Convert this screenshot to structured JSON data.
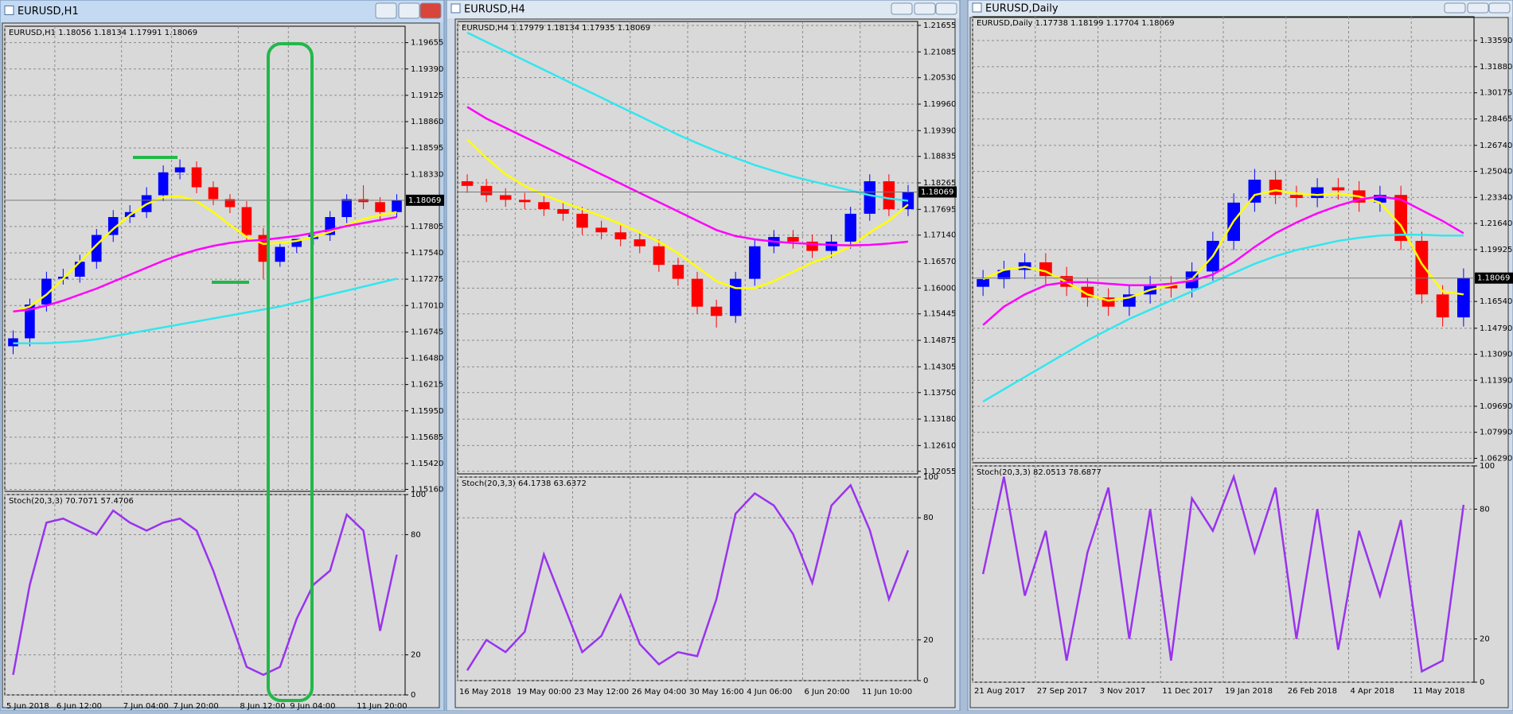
{
  "windows": [
    {
      "title": "EURUSD,H1"
    },
    {
      "title": "EURUSD,H4"
    },
    {
      "title": "EURUSD,Daily"
    }
  ],
  "chart_data": [
    {
      "type": "candlestick",
      "title": "EURUSD,H1  1.18056 1.18134 1.17991 1.18069",
      "categories": [
        "5 Jun 2018",
        null,
        null,
        "6 Jun 12:00",
        null,
        null,
        null,
        "7 Jun 04:00",
        null,
        null,
        "7 Jun 20:00",
        null,
        null,
        null,
        "8 Jun 12:00",
        null,
        null,
        "9 Jun 04:00",
        null,
        null,
        null,
        "11 Jun 20:00",
        null,
        null
      ],
      "open": [
        1.166,
        1.1668,
        1.1702,
        1.1728,
        1.173,
        1.1745,
        1.1772,
        1.179,
        1.1795,
        1.1812,
        1.1835,
        1.184,
        1.182,
        1.1808,
        1.18,
        1.1772,
        1.1745,
        1.176,
        1.1768,
        1.1772,
        1.179,
        1.1808,
        1.1805,
        1.1795
      ],
      "high": [
        1.1676,
        1.1708,
        1.1735,
        1.1738,
        1.1752,
        1.1778,
        1.1797,
        1.1802,
        1.182,
        1.1842,
        1.1848,
        1.1846,
        1.1826,
        1.1813,
        1.1806,
        1.1779,
        1.1765,
        1.1766,
        1.1775,
        1.1796,
        1.1813,
        1.1822,
        1.181,
        1.1813
      ],
      "low": [
        1.1652,
        1.166,
        1.1695,
        1.1722,
        1.1724,
        1.1738,
        1.1765,
        1.1784,
        1.1789,
        1.1806,
        1.1828,
        1.1814,
        1.1802,
        1.1794,
        1.1766,
        1.1728,
        1.174,
        1.1754,
        1.1762,
        1.1766,
        1.1784,
        1.1798,
        1.1788,
        1.179
      ],
      "close": [
        1.1668,
        1.1702,
        1.1728,
        1.173,
        1.1745,
        1.1772,
        1.179,
        1.1795,
        1.1812,
        1.1835,
        1.184,
        1.182,
        1.1808,
        1.18,
        1.1772,
        1.1745,
        1.176,
        1.1768,
        1.1772,
        1.179,
        1.1808,
        1.1805,
        1.1795,
        1.1807
      ],
      "up_color": "#0000ff",
      "down_color": "#ff0000",
      "series": [
        {
          "color": "#ffff00",
          "values": [
            1.1695,
            1.17,
            1.1712,
            1.1728,
            1.1745,
            1.1762,
            1.1778,
            1.1792,
            1.1803,
            1.181,
            1.1811,
            1.1806,
            1.1795,
            1.1782,
            1.177,
            1.1763,
            1.1764,
            1.1766,
            1.177,
            1.1775,
            1.1782,
            1.1788,
            1.1792,
            1.1795
          ]
        },
        {
          "color": "#ff00ff",
          "values": [
            1.1695,
            1.1697,
            1.1701,
            1.1706,
            1.1712,
            1.1718,
            1.1725,
            1.1732,
            1.1739,
            1.1746,
            1.1752,
            1.1757,
            1.1761,
            1.1764,
            1.1766,
            1.1767,
            1.1769,
            1.1771,
            1.1774,
            1.1777,
            1.1781,
            1.1784,
            1.1787,
            1.179
          ]
        },
        {
          "color": "#33e6ee",
          "values": [
            1.1663,
            1.1663,
            1.1663,
            1.1664,
            1.1665,
            1.1667,
            1.167,
            1.1673,
            1.1676,
            1.1679,
            1.1682,
            1.1685,
            1.1688,
            1.1691,
            1.1694,
            1.1697,
            1.17,
            1.1704,
            1.1708,
            1.1712,
            1.1716,
            1.172,
            1.1724,
            1.1728
          ]
        }
      ],
      "ylim": [
        1.1514,
        1.1982
      ],
      "yticks": [
        1.19655,
        {
          "value": 1.1939,
          "label": "1.19390"
        },
        1.19125,
        {
          "value": 1.1886,
          "label": "1.18860"
        },
        1.18595,
        {
          "value": 1.1833,
          "label": "1.18330"
        },
        1.17805,
        {
          "value": 1.1754,
          "label": "1.17540"
        },
        1.17275,
        {
          "value": 1.1701,
          "label": "1.17010"
        },
        1.16745,
        {
          "value": 1.1648,
          "label": "1.16480"
        },
        1.16215,
        {
          "value": 1.1595,
          "label": "1.15950"
        },
        1.15685,
        {
          "value": 1.1542,
          "label": "1.15420"
        },
        {
          "value": 1.1516,
          "label": "1.15160"
        }
      ],
      "last_price": 1.18069,
      "grid": true
    },
    {
      "type": "line",
      "title": "Stoch(20,3,3) 70.7071 57.4706",
      "series": [
        {
          "color": "#9933ee",
          "values": [
            10,
            55,
            86,
            88,
            84,
            80,
            92,
            86,
            82,
            86,
            88,
            82,
            62,
            38,
            14,
            10,
            14,
            38,
            55,
            62,
            90,
            82,
            32,
            70
          ]
        }
      ],
      "ylim": [
        0,
        100
      ],
      "yticks": [
        100,
        80,
        20,
        0
      ],
      "grid": true
    },
    {
      "type": "candlestick",
      "title": "EURUSD,H4  1.17979 1.18134 1.17935 1.18069",
      "categories": [
        "16 May 2018",
        null,
        null,
        "19 May 00:00",
        null,
        null,
        "23 May 12:00",
        null,
        null,
        "26 May 04:00",
        null,
        null,
        "30 May 16:00",
        null,
        null,
        "4 Jun 06:00",
        null,
        null,
        "6 Jun 20:00",
        null,
        null,
        "11 Jun 10:00",
        null,
        null
      ],
      "open": [
        1.183,
        1.182,
        1.18,
        1.179,
        1.1785,
        1.177,
        1.176,
        1.173,
        1.172,
        1.1705,
        1.169,
        1.165,
        1.162,
        1.156,
        1.154,
        1.162,
        1.169,
        1.171,
        1.17,
        1.168,
        1.17,
        1.176,
        1.183,
        1.177
      ],
      "high": [
        1.1845,
        1.1835,
        1.1815,
        1.1805,
        1.18,
        1.1785,
        1.1775,
        1.1745,
        1.1735,
        1.172,
        1.1705,
        1.1665,
        1.1635,
        1.1575,
        1.1635,
        1.1705,
        1.1725,
        1.1725,
        1.1715,
        1.1715,
        1.1775,
        1.1845,
        1.1845,
        1.1822
      ],
      "low": [
        1.1805,
        1.1785,
        1.1775,
        1.177,
        1.1755,
        1.1745,
        1.1715,
        1.1705,
        1.169,
        1.1675,
        1.1635,
        1.1605,
        1.1545,
        1.1515,
        1.1525,
        1.1605,
        1.1675,
        1.1685,
        1.1665,
        1.1665,
        1.1685,
        1.1745,
        1.1755,
        1.1755
      ],
      "close": [
        1.182,
        1.18,
        1.179,
        1.1785,
        1.177,
        1.176,
        1.173,
        1.172,
        1.1705,
        1.169,
        1.165,
        1.162,
        1.156,
        1.154,
        1.162,
        1.169,
        1.171,
        1.17,
        1.168,
        1.17,
        1.176,
        1.183,
        1.177,
        1.1807
      ],
      "up_color": "#0000ff",
      "down_color": "#ff0000",
      "series": [
        {
          "color": "#ffff00",
          "values": [
            1.192,
            1.188,
            1.1845,
            1.182,
            1.18,
            1.1785,
            1.177,
            1.1755,
            1.1738,
            1.172,
            1.17,
            1.1675,
            1.1645,
            1.1615,
            1.16,
            1.16,
            1.1615,
            1.1635,
            1.1655,
            1.167,
            1.169,
            1.172,
            1.1745,
            1.178
          ]
        },
        {
          "color": "#ff00ff",
          "values": [
            1.199,
            1.1965,
            1.1945,
            1.1925,
            1.1905,
            1.1885,
            1.1865,
            1.1845,
            1.1825,
            1.1805,
            1.1785,
            1.1765,
            1.1745,
            1.1725,
            1.1712,
            1.1705,
            1.17,
            1.1697,
            1.1695,
            1.1693,
            1.1692,
            1.1693,
            1.1696,
            1.17
          ]
        },
        {
          "color": "#33e6ee",
          "values": [
            1.215,
            1.213,
            1.211,
            1.209,
            1.207,
            1.205,
            1.203,
            1.201,
            1.199,
            1.197,
            1.195,
            1.193,
            1.1912,
            1.1895,
            1.188,
            1.1865,
            1.1852,
            1.184,
            1.183,
            1.182,
            1.181,
            1.18,
            1.1793,
            1.1788
          ]
        }
      ],
      "ylim": [
        1.12,
        1.2174
      ],
      "yticks": [
        1.21655,
        1.21085,
        {
          "value": 1.2053,
          "label": "1.20530"
        },
        {
          "value": 1.1996,
          "label": "1.19960"
        },
        {
          "value": 1.1939,
          "label": "1.19390"
        },
        1.18835,
        1.18265,
        1.17695,
        {
          "value": 1.1714,
          "label": "1.17140"
        },
        {
          "value": 1.1657,
          "label": "1.16570"
        },
        {
          "value": 1.16,
          "label": "1.16000"
        },
        1.15445,
        1.14875,
        1.14305,
        {
          "value": 1.1375,
          "label": "1.13750"
        },
        {
          "value": 1.1318,
          "label": "1.13180"
        },
        {
          "value": 1.1261,
          "label": "1.12610"
        },
        1.12055
      ],
      "last_price": 1.18069,
      "grid": true
    },
    {
      "type": "line",
      "title": "Stoch(20,3,3) 64.1738 63.6372",
      "series": [
        {
          "color": "#9933ee",
          "values": [
            5,
            20,
            14,
            24,
            62,
            38,
            14,
            22,
            42,
            18,
            8,
            14,
            12,
            40,
            82,
            92,
            86,
            72,
            48,
            86,
            96,
            74,
            40,
            64
          ]
        }
      ],
      "ylim": [
        0,
        100
      ],
      "yticks": [
        100,
        80,
        20,
        0
      ],
      "grid": true
    },
    {
      "type": "candlestick",
      "title": "EURUSD,Daily  1.17738 1.18199 1.17704 1.18069",
      "categories": [
        "21 Aug 2017",
        null,
        null,
        "27 Sep 2017",
        null,
        null,
        "3 Nov 2017",
        null,
        null,
        "11 Dec 2017",
        null,
        null,
        "19 Jan 2018",
        null,
        null,
        "26 Feb 2018",
        null,
        null,
        "4 Apr 2018",
        null,
        null,
        "11 May 2018",
        null,
        null
      ],
      "open": [
        1.175,
        1.18,
        1.186,
        1.191,
        1.182,
        1.175,
        1.168,
        1.162,
        1.17,
        1.176,
        1.174,
        1.185,
        1.205,
        1.23,
        1.245,
        1.235,
        1.233,
        1.24,
        1.238,
        1.23,
        1.235,
        1.205,
        1.17,
        1.155
      ],
      "high": [
        1.186,
        1.192,
        1.197,
        1.197,
        1.188,
        1.181,
        1.174,
        1.176,
        1.182,
        1.182,
        1.191,
        1.211,
        1.236,
        1.252,
        1.251,
        1.241,
        1.246,
        1.246,
        1.244,
        1.241,
        1.241,
        1.211,
        1.176,
        1.187
      ],
      "low": [
        1.169,
        1.174,
        1.18,
        1.176,
        1.169,
        1.162,
        1.156,
        1.156,
        1.164,
        1.168,
        1.168,
        1.179,
        1.199,
        1.224,
        1.229,
        1.227,
        1.227,
        1.232,
        1.224,
        1.224,
        1.199,
        1.164,
        1.149,
        1.149
      ],
      "close": [
        1.18,
        1.186,
        1.191,
        1.182,
        1.175,
        1.168,
        1.162,
        1.17,
        1.176,
        1.174,
        1.185,
        1.205,
        1.23,
        1.245,
        1.235,
        1.233,
        1.24,
        1.238,
        1.23,
        1.235,
        1.205,
        1.17,
        1.155,
        1.1807
      ],
      "up_color": "#0000ff",
      "down_color": "#ff0000",
      "series": [
        {
          "color": "#ffff00",
          "values": [
            1.18,
            1.186,
            1.188,
            1.185,
            1.178,
            1.17,
            1.166,
            1.168,
            1.173,
            1.176,
            1.18,
            1.195,
            1.218,
            1.235,
            1.238,
            1.236,
            1.235,
            1.236,
            1.234,
            1.23,
            1.215,
            1.19,
            1.172,
            1.17
          ]
        },
        {
          "color": "#ff00ff",
          "values": [
            1.15,
            1.162,
            1.17,
            1.176,
            1.178,
            1.178,
            1.177,
            1.176,
            1.176,
            1.177,
            1.179,
            1.183,
            1.191,
            1.201,
            1.21,
            1.217,
            1.223,
            1.228,
            1.232,
            1.234,
            1.232,
            1.225,
            1.218,
            1.21
          ]
        },
        {
          "color": "#33e6ee",
          "values": [
            1.1,
            1.108,
            1.116,
            1.124,
            1.132,
            1.14,
            1.147,
            1.154,
            1.16,
            1.166,
            1.172,
            1.178,
            1.184,
            1.19,
            1.195,
            1.199,
            1.202,
            1.205,
            1.207,
            1.2085,
            1.209,
            1.209,
            1.2085,
            1.2085
          ]
        }
      ],
      "ylim": [
        1.06,
        1.3515
      ],
      "yticks": [
        {
          "value": 1.3359,
          "label": "1.33590"
        },
        {
          "value": 1.3188,
          "label": "1.31880"
        },
        1.30175,
        1.28465,
        {
          "value": 1.2674,
          "label": "1.26740"
        },
        {
          "value": 1.2504,
          "label": "1.25040"
        },
        {
          "value": 1.2334,
          "label": "1.23340"
        },
        {
          "value": 1.2164,
          "label": "1.21640"
        },
        1.19925,
        {
          "value": 1.1654,
          "label": "1.16540"
        },
        {
          "value": 1.1479,
          "label": "1.14790"
        },
        {
          "value": 1.1309,
          "label": "1.13090"
        },
        {
          "value": 1.1139,
          "label": "1.11390"
        },
        {
          "value": 1.0969,
          "label": "1.09690"
        },
        {
          "value": 1.0799,
          "label": "1.07990"
        },
        {
          "value": 1.0629,
          "label": "1.06290"
        }
      ],
      "last_price": 1.18069,
      "grid": true
    },
    {
      "type": "line",
      "title": "Stoch(20,3,3) 82.0513 78.6877",
      "series": [
        {
          "color": "#9933ee",
          "values": [
            50,
            95,
            40,
            70,
            10,
            60,
            90,
            20,
            80,
            10,
            85,
            70,
            95,
            60,
            90,
            20,
            80,
            15,
            70,
            40,
            75,
            5,
            10,
            82
          ]
        }
      ],
      "ylim": [
        0,
        100
      ],
      "yticks": [
        100,
        80,
        20,
        0
      ],
      "grid": true
    }
  ]
}
